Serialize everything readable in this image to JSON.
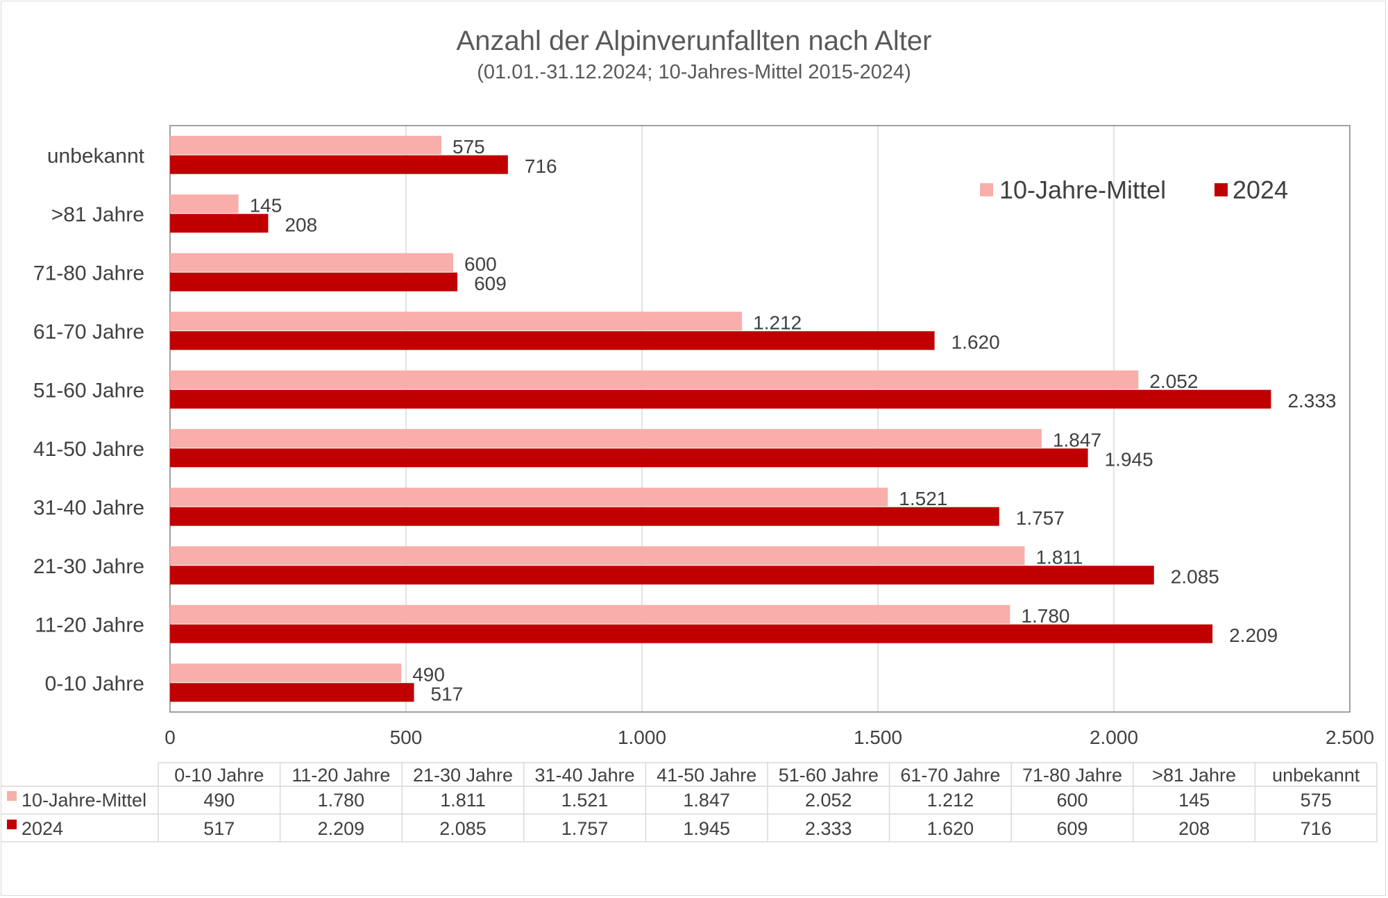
{
  "chart_data": {
    "type": "bar",
    "orientation": "horizontal",
    "title": "Anzahl der Alpinverunfallten nach Alter",
    "subtitle": "(01.01.-31.12.2024; 10-Jahres-Mittel 2015-2024)",
    "categories": [
      "0-10 Jahre",
      "11-20 Jahre",
      "21-30 Jahre",
      "31-40 Jahre",
      "41-50 Jahre",
      "51-60 Jahre",
      "61-70 Jahre",
      "71-80 Jahre",
      ">81 Jahre",
      "unbekannt"
    ],
    "series": [
      {
        "name": "10-Jahre-Mittel",
        "color": "#f8aeab",
        "values": [
          490,
          1780,
          1811,
          1521,
          1847,
          2052,
          1212,
          600,
          145,
          575
        ],
        "labels": [
          "490",
          "1.780",
          "1.811",
          "1.521",
          "1.847",
          "2.052",
          "1.212",
          "600",
          "145",
          "575"
        ]
      },
      {
        "name": "2024",
        "color": "#c00000",
        "values": [
          517,
          2209,
          2085,
          1757,
          1945,
          2333,
          1620,
          609,
          208,
          716
        ],
        "labels": [
          "517",
          "2.209",
          "2.085",
          "1.757",
          "1.945",
          "2.333",
          "1.620",
          "609",
          "208",
          "716"
        ]
      }
    ],
    "xlim": [
      0,
      2500
    ],
    "xticks": [
      0,
      500,
      1000,
      1500,
      2000,
      2500
    ],
    "xtick_labels": [
      "0",
      "500",
      "1.000",
      "1.500",
      "2.000",
      "2.500"
    ],
    "grid": "vertical",
    "legend": "top-right",
    "data_table": true
  }
}
